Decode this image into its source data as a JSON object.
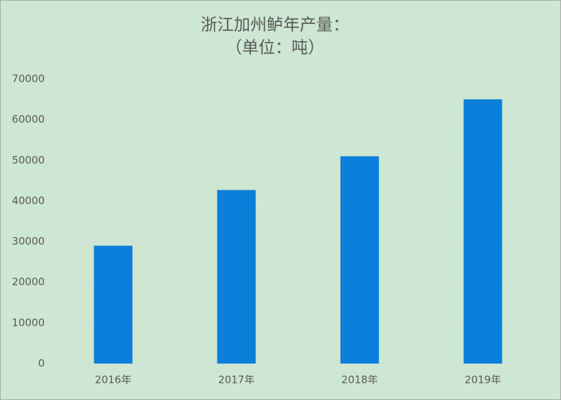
{
  "chart_data": {
    "type": "bar",
    "title": "浙江加州鲈年产量：",
    "subtitle": "（单位：吨）",
    "categories": [
      "2016年",
      "2017年",
      "2018年",
      "2019年"
    ],
    "values": [
      29000,
      42700,
      51000,
      65000
    ],
    "color": "#0b7fd9",
    "ylim": [
      0,
      70000
    ],
    "yticks": [
      0,
      10000,
      20000,
      30000,
      40000,
      50000,
      60000,
      70000
    ],
    "grid": true
  }
}
